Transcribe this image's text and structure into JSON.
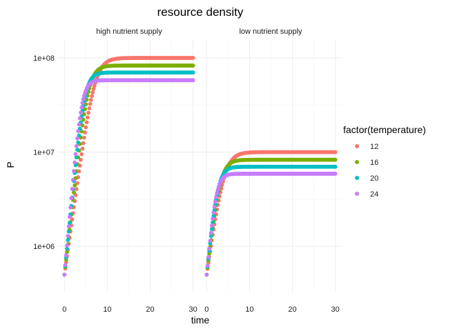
{
  "chart_data": {
    "type": "scatter",
    "title": "resource density",
    "xlabel": "time",
    "ylabel": "P",
    "y_scale": "log10",
    "x_ticks": [
      0,
      10,
      20,
      30
    ],
    "y_ticks": [
      1000000,
      10000000,
      100000000
    ],
    "y_tick_labels": [
      "1e+06",
      "1e+07",
      "1e+08"
    ],
    "xlim": [
      -1.5,
      31.5
    ],
    "ylim": [
      330000,
      155000000
    ],
    "grid": true,
    "legend": {
      "title": "factor(temperature)",
      "position": "right",
      "entries": [
        "12",
        "16",
        "20",
        "24"
      ]
    },
    "colors": {
      "12": "#F8766D",
      "16": "#7CAE00",
      "20": "#00BFC4",
      "24": "#C77CFF"
    },
    "x_step": 0.2,
    "x_max": 30,
    "panels": [
      {
        "strip": "high nutrient supply",
        "series": [
          {
            "name": "12",
            "start": 500000,
            "K": 100000000,
            "r": 0.76
          },
          {
            "name": "16",
            "start": 500000,
            "K": 83000000,
            "r": 0.93
          },
          {
            "name": "20",
            "start": 500000,
            "K": 70000000,
            "r": 1.07
          },
          {
            "name": "24",
            "start": 500000,
            "K": 58000000,
            "r": 1.2
          }
        ]
      },
      {
        "strip": "low nutrient supply",
        "series": [
          {
            "name": "12",
            "start": 500000,
            "K": 10000000,
            "r": 0.76
          },
          {
            "name": "16",
            "start": 500000,
            "K": 8300000,
            "r": 0.93
          },
          {
            "name": "20",
            "start": 500000,
            "K": 7000000,
            "r": 1.07
          },
          {
            "name": "24",
            "start": 500000,
            "K": 5900000,
            "r": 1.2
          }
        ]
      }
    ]
  }
}
